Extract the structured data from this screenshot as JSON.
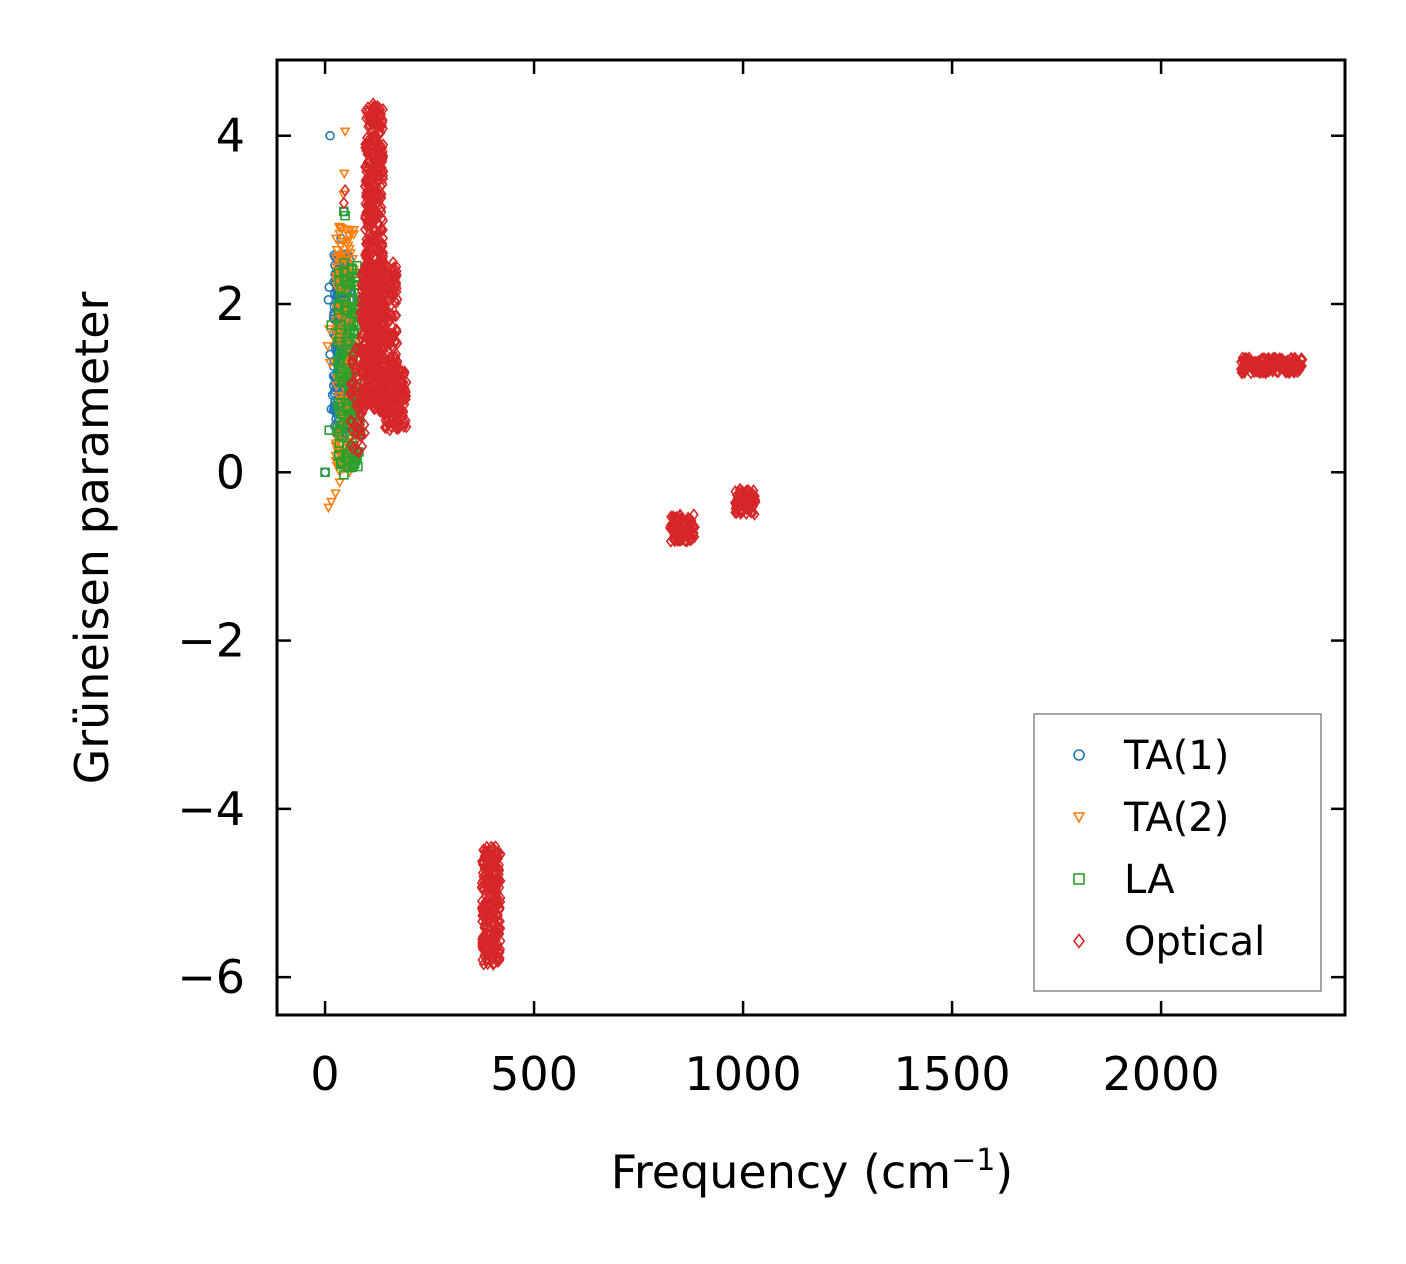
{
  "chart_data": {
    "type": "scatter",
    "xlabel": "Frequency (cm",
    "xlabel_sup": "−1",
    "xlabel_end": ")",
    "ylabel": "Grüneisen parameter",
    "xlim": [
      -115,
      2440
    ],
    "ylim": [
      -6.45,
      4.9
    ],
    "xticks": [
      0,
      500,
      1000,
      1500,
      2000
    ],
    "xtick_labels": [
      "0",
      "500",
      "1000",
      "1500",
      "2000"
    ],
    "yticks": [
      4,
      2,
      0,
      -2,
      -4,
      -6
    ],
    "ytick_labels": [
      "4",
      "2",
      "0",
      "−2",
      "−4",
      "−6"
    ],
    "legend_position": "lower-right",
    "series": [
      {
        "name": "TA(1)",
        "marker": "circle",
        "color": "#1f77b4",
        "clusters": [
          {
            "x": [
              20,
              62
            ],
            "y": [
              0.45,
              2.6
            ],
            "n": 260
          },
          {
            "x": [
              28,
              48
            ],
            "y": [
              1.2,
              2.2
            ],
            "n": 120
          }
        ],
        "points": [
          [
            12,
            4.0
          ],
          [
            0,
            0.0
          ],
          [
            8,
            2.05
          ],
          [
            10,
            2.2
          ],
          [
            12,
            1.4
          ],
          [
            15,
            0.75
          ],
          [
            18,
            0.92
          ],
          [
            25,
            1.1
          ],
          [
            38,
            2.78
          ],
          [
            50,
            0.47
          ],
          [
            45,
            3.1
          ],
          [
            30,
            2.55
          ]
        ]
      },
      {
        "name": "TA(2)",
        "marker": "triangle-down",
        "color": "#ff7f0e",
        "clusters": [
          {
            "x": [
              25,
              70
            ],
            "y": [
              0.0,
              3.0
            ],
            "n": 170
          }
        ],
        "points": [
          [
            48,
            4.05
          ],
          [
            46,
            3.55
          ],
          [
            44,
            3.3
          ],
          [
            8,
            -0.42
          ],
          [
            15,
            -0.35
          ],
          [
            25,
            -0.25
          ],
          [
            35,
            -0.12
          ],
          [
            44,
            0.05
          ],
          [
            6,
            1.5
          ],
          [
            10,
            1.7
          ],
          [
            12,
            1.3
          ],
          [
            40,
            2.9
          ],
          [
            30,
            0.25
          ]
        ]
      },
      {
        "name": "LA",
        "marker": "square",
        "color": "#2ca02c",
        "clusters": [
          {
            "x": [
              30,
              85
            ],
            "y": [
              0.05,
              2.5
            ],
            "n": 180
          }
        ],
        "points": [
          [
            0,
            0.0
          ],
          [
            45,
            3.1
          ],
          [
            48,
            3.05
          ],
          [
            10,
            0.5
          ],
          [
            45,
            -0.03
          ],
          [
            15,
            1.75
          ],
          [
            70,
            0.1
          ]
        ]
      },
      {
        "name": "Optical",
        "marker": "diamond",
        "color": "#d62728",
        "clusters": [
          {
            "x": [
              95,
              140
            ],
            "y": [
              0.8,
              4.35
            ],
            "n": 520
          },
          {
            "x": [
              85,
              175
            ],
            "y": [
              0.7,
              2.5
            ],
            "n": 420
          },
          {
            "x": [
              140,
              195
            ],
            "y": [
              0.5,
              1.2
            ],
            "n": 120
          },
          {
            "x": [
              60,
              95
            ],
            "y": [
              0.2,
              1.5
            ],
            "n": 60
          },
          {
            "x": [
              375,
              420
            ],
            "y": [
              -5.85,
              -4.45
            ],
            "n": 260
          },
          {
            "x": [
              825,
              885
            ],
            "y": [
              -0.82,
              -0.5
            ],
            "n": 90
          },
          {
            "x": [
              980,
              1030
            ],
            "y": [
              -0.5,
              -0.2
            ],
            "n": 80
          },
          {
            "x": [
              2190,
              2340
            ],
            "y": [
              1.18,
              1.36
            ],
            "n": 170
          }
        ],
        "points": [
          [
            48,
            3.35
          ],
          [
            45,
            3.2
          ],
          [
            115,
            4.38
          ]
        ]
      }
    ]
  }
}
